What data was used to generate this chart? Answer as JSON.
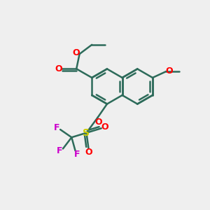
{
  "bg_color": "#efefef",
  "bond_color": "#2d6b5a",
  "bond_width": 1.8,
  "O_color": "#ff0000",
  "S_color": "#cccc00",
  "F_color": "#cc00cc",
  "figsize": [
    3.0,
    3.0
  ],
  "dpi": 100,
  "xlim": [
    0,
    10
  ],
  "ylim": [
    0,
    10
  ]
}
